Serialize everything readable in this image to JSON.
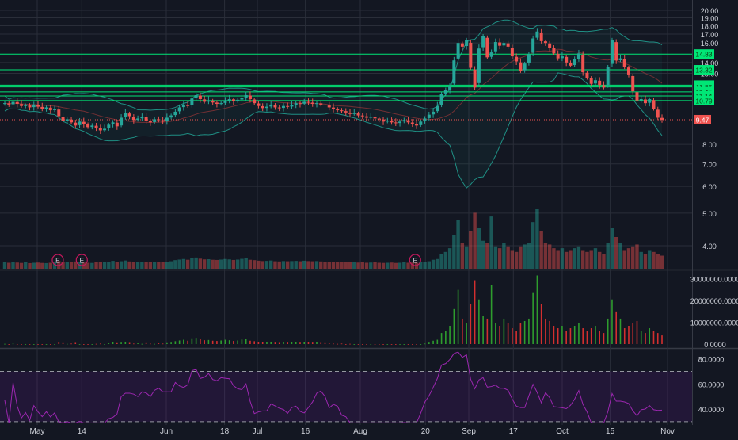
{
  "colors": {
    "background": "#131722",
    "grid": "#2a2e39",
    "up": "#26a69a",
    "down": "#ef5350",
    "band": "#1f8f84",
    "level_line": "#00e676",
    "level_badge": "#00e676",
    "level_badge_text": "#0b3d12",
    "last_price": "#ef5350",
    "rsi_line": "#9c27b0",
    "rsi_band": "#6a1b9a",
    "axis_text": "#d1d4dc"
  },
  "chart_data": [
    {
      "type": "candlestick",
      "panel": "price",
      "y_ticks": [
        "20.00",
        "19.00",
        "18.00",
        "17.00",
        "16.00",
        "14.00",
        "13.00",
        "8.00",
        "7.00",
        "6.00",
        "5.00",
        "4.00"
      ],
      "y_scale": "log",
      "ylim": [
        3.4,
        21.0
      ],
      "horizontal_levels": [
        "14.83",
        "13.32",
        "11.99",
        "11.85",
        "11.45",
        "11.14",
        "10.79"
      ],
      "last_price_label": "9.47",
      "last_price": 9.47,
      "earnings_markers": [
        {
          "label": "E",
          "date": "May 7"
        },
        {
          "label": "E",
          "date": "May 14"
        },
        {
          "label": "E",
          "date": "Aug 17"
        }
      ],
      "x_tick_labels": [
        {
          "label": "May",
          "date": "May 1"
        },
        {
          "label": "14",
          "date": "May 14"
        },
        {
          "label": "Jun",
          "date": "Jun 1"
        },
        {
          "label": "18",
          "date": "Jun 18"
        },
        {
          "label": "Jul",
          "date": "Jul 2"
        },
        {
          "label": "16",
          "date": "Jul 16"
        },
        {
          "label": "Aug",
          "date": "Aug 1"
        },
        {
          "label": "20",
          "date": "Aug 20"
        },
        {
          "label": "Sep",
          "date": "Sep 4"
        },
        {
          "label": "17",
          "date": "Sep 17"
        },
        {
          "label": "Oct",
          "date": "Oct 1"
        },
        {
          "label": "15",
          "date": "Oct 15"
        },
        {
          "label": "Nov",
          "date": "Nov 1"
        }
      ],
      "series": {
        "close": [
          10.6,
          10.5,
          10.7,
          10.55,
          10.4,
          10.45,
          10.3,
          10.5,
          10.35,
          10.2,
          10.3,
          10.1,
          10.2,
          9.7,
          9.4,
          9.5,
          9.3,
          9.1,
          9.35,
          9.2,
          9.0,
          9.1,
          8.95,
          8.8,
          8.9,
          9.15,
          9.3,
          9.05,
          9.6,
          9.9,
          9.7,
          9.45,
          9.55,
          9.65,
          9.4,
          9.3,
          9.5,
          9.45,
          9.35,
          9.6,
          9.75,
          10.0,
          10.3,
          10.5,
          10.4,
          10.95,
          11.2,
          10.9,
          10.7,
          10.8,
          10.65,
          10.55,
          10.6,
          10.8,
          10.9,
          10.75,
          10.85,
          11.0,
          11.2,
          10.9,
          10.6,
          10.4,
          10.25,
          10.35,
          10.5,
          10.3,
          10.25,
          10.4,
          10.35,
          10.45,
          10.6,
          10.55,
          10.7,
          10.65,
          10.55,
          10.6,
          10.5,
          10.45,
          10.3,
          10.2,
          10.1,
          10.05,
          9.95,
          9.85,
          9.9,
          9.75,
          9.7,
          9.6,
          9.65,
          9.55,
          9.5,
          9.35,
          9.4,
          9.3,
          9.25,
          9.35,
          9.45,
          9.3,
          9.2,
          9.1,
          9.35,
          9.55,
          9.8,
          10.0,
          10.4,
          11.3,
          11.6,
          11.9,
          14.2,
          16.0,
          15.6,
          16.3,
          13.5,
          11.8,
          15.4,
          16.8,
          14.5,
          15.0,
          16.1,
          15.7,
          16.0,
          15.6,
          14.6,
          14.1,
          13.2,
          13.9,
          14.8,
          16.5,
          17.3,
          16.2,
          16.0,
          15.5,
          14.9,
          14.4,
          14.6,
          14.0,
          13.7,
          14.3,
          14.9,
          13.1,
          12.6,
          12.1,
          12.4,
          12.0,
          11.8,
          13.6,
          16.3,
          14.2,
          14.4,
          13.6,
          12.9,
          11.5,
          10.8,
          10.9,
          10.6,
          10.9,
          10.2,
          9.6,
          9.47
        ],
        "open_offset_note": "",
        "volume": [
          3.5,
          3.2,
          3.6,
          3.3,
          3.1,
          3.4,
          3.0,
          3.2,
          3.3,
          3.1,
          3.0,
          3.2,
          3.4,
          4.1,
          3.8,
          3.5,
          3.6,
          3.9,
          3.4,
          3.3,
          3.2,
          3.1,
          3.5,
          3.6,
          3.4,
          3.7,
          4.2,
          3.8,
          4.0,
          4.4,
          3.9,
          3.6,
          3.7,
          3.5,
          3.8,
          3.6,
          3.5,
          3.7,
          3.6,
          3.8,
          4.0,
          4.6,
          4.9,
          5.2,
          4.8,
          5.8,
          6.0,
          5.4,
          5.0,
          5.1,
          4.8,
          4.7,
          4.9,
          5.2,
          5.0,
          4.7,
          4.9,
          5.3,
          5.6,
          4.8,
          4.6,
          4.3,
          4.1,
          4.2,
          4.4,
          4.0,
          3.9,
          4.1,
          4.0,
          4.1,
          4.2,
          4.0,
          4.3,
          4.1,
          4.0,
          4.1,
          3.9,
          3.8,
          3.7,
          3.6,
          3.5,
          3.6,
          3.4,
          3.5,
          3.4,
          3.3,
          3.4,
          3.2,
          3.3,
          3.4,
          3.2,
          3.1,
          3.2,
          3.3,
          3.1,
          3.2,
          3.4,
          3.2,
          3.3,
          3.2,
          3.4,
          3.6,
          4.0,
          4.8,
          5.2,
          8.0,
          9.0,
          11.0,
          18.0,
          26.0,
          14.0,
          12.0,
          20.0,
          30.0,
          22.0,
          15.0,
          14.0,
          28.0,
          12.0,
          11.0,
          14.0,
          12.0,
          10.0,
          9.0,
          12.0,
          13.0,
          14.0,
          25.0,
          32.0,
          20.0,
          14.0,
          13.0,
          11.0,
          10.0,
          11.0,
          9.0,
          10.0,
          11.0,
          12.0,
          10.0,
          9.0,
          10.0,
          11.0,
          9.0,
          8.0,
          14.0,
          22.0,
          17.0,
          14.0,
          10.0,
          11.0,
          12.0,
          13.0,
          9.0,
          8.0,
          10.0,
          9.0,
          8.0,
          7.0
        ]
      }
    },
    {
      "type": "bar",
      "panel": "volume-oscillator",
      "y_ticks": [
        "30000000.0000",
        "20000000.0000",
        "10000000.0000",
        "0.0000"
      ],
      "ylim": [
        0,
        32000000
      ],
      "source_series": "price.volume"
    },
    {
      "type": "line",
      "panel": "rsi",
      "y_ticks": [
        "80.0000",
        "60.0000",
        "40.0000"
      ],
      "ylim": [
        28,
        88
      ],
      "upper_band": 70,
      "lower_band": 30
    }
  ]
}
